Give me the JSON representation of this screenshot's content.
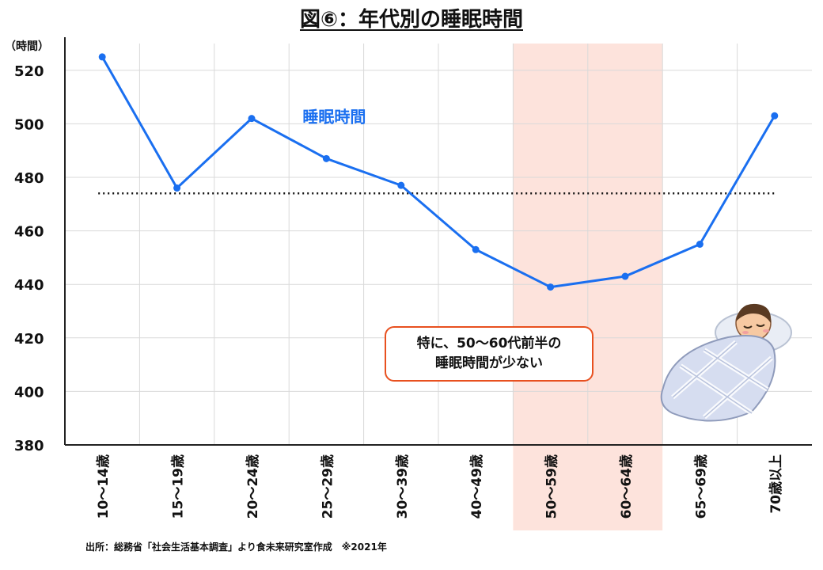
{
  "title": "図⑥：年代別の睡眠時間",
  "unit_label": "（時間）",
  "source": "出所：総務省「社会生活基本調査」より食未来研究室作成　※2021年",
  "callout": {
    "line1": "特に、50～60代前半の",
    "line2": "睡眠時間が少ない"
  },
  "colors": {
    "line": "#1a6ff0",
    "highlight": "#fde3dc",
    "callout_border": "#e8501f",
    "grid": "#d9d9d9"
  },
  "illustration": "sleeping-person-icon",
  "chart_data": {
    "type": "line",
    "title": "図⑥：年代別の睡眠時間",
    "ylabel": "（時間）",
    "xlabel": "",
    "categories": [
      "10～14歳",
      "15～19歳",
      "20～24歳",
      "25～29歳",
      "30～39歳",
      "40～49歳",
      "50～59歳",
      "60～64歳",
      "65～69歳",
      "70歳以上"
    ],
    "series": [
      {
        "name": "睡眠時間",
        "values": [
          525,
          476,
          502,
          487,
          477,
          453,
          439,
          443,
          455,
          503
        ]
      }
    ],
    "reference_line": 474,
    "ylim": [
      380,
      530
    ],
    "yticks": [
      380,
      400,
      420,
      440,
      460,
      480,
      500,
      520
    ],
    "highlight_categories": [
      "50～59歳",
      "60～64歳"
    ],
    "grid": true
  }
}
